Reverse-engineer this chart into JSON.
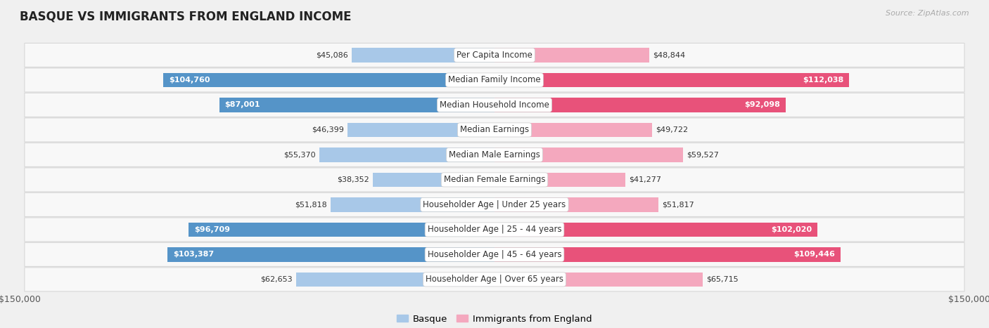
{
  "title": "BASQUE VS IMMIGRANTS FROM ENGLAND INCOME",
  "source": "Source: ZipAtlas.com",
  "categories": [
    "Per Capita Income",
    "Median Family Income",
    "Median Household Income",
    "Median Earnings",
    "Median Male Earnings",
    "Median Female Earnings",
    "Householder Age | Under 25 years",
    "Householder Age | 25 - 44 years",
    "Householder Age | 45 - 64 years",
    "Householder Age | Over 65 years"
  ],
  "basque_values": [
    45086,
    104760,
    87001,
    46399,
    55370,
    38352,
    51818,
    96709,
    103387,
    62653
  ],
  "england_values": [
    48844,
    112038,
    92098,
    49722,
    59527,
    41277,
    51817,
    102020,
    109446,
    65715
  ],
  "basque_color_light": "#a8c8e8",
  "basque_color_dark": "#5594c8",
  "england_color_light": "#f4a8be",
  "england_color_dark": "#e8527a",
  "basque_label": "Basque",
  "england_label": "Immigrants from England",
  "max_value": 150000,
  "bar_height": 0.58,
  "background_color": "#f0f0f0",
  "row_bg": "#f8f8f8",
  "row_border": "#d8d8d8",
  "label_fontsize": 8.5,
  "title_fontsize": 12,
  "value_fontsize": 8,
  "legend_fontsize": 9.5,
  "dark_threshold": 75000,
  "category_label_bg": "#ffffff"
}
